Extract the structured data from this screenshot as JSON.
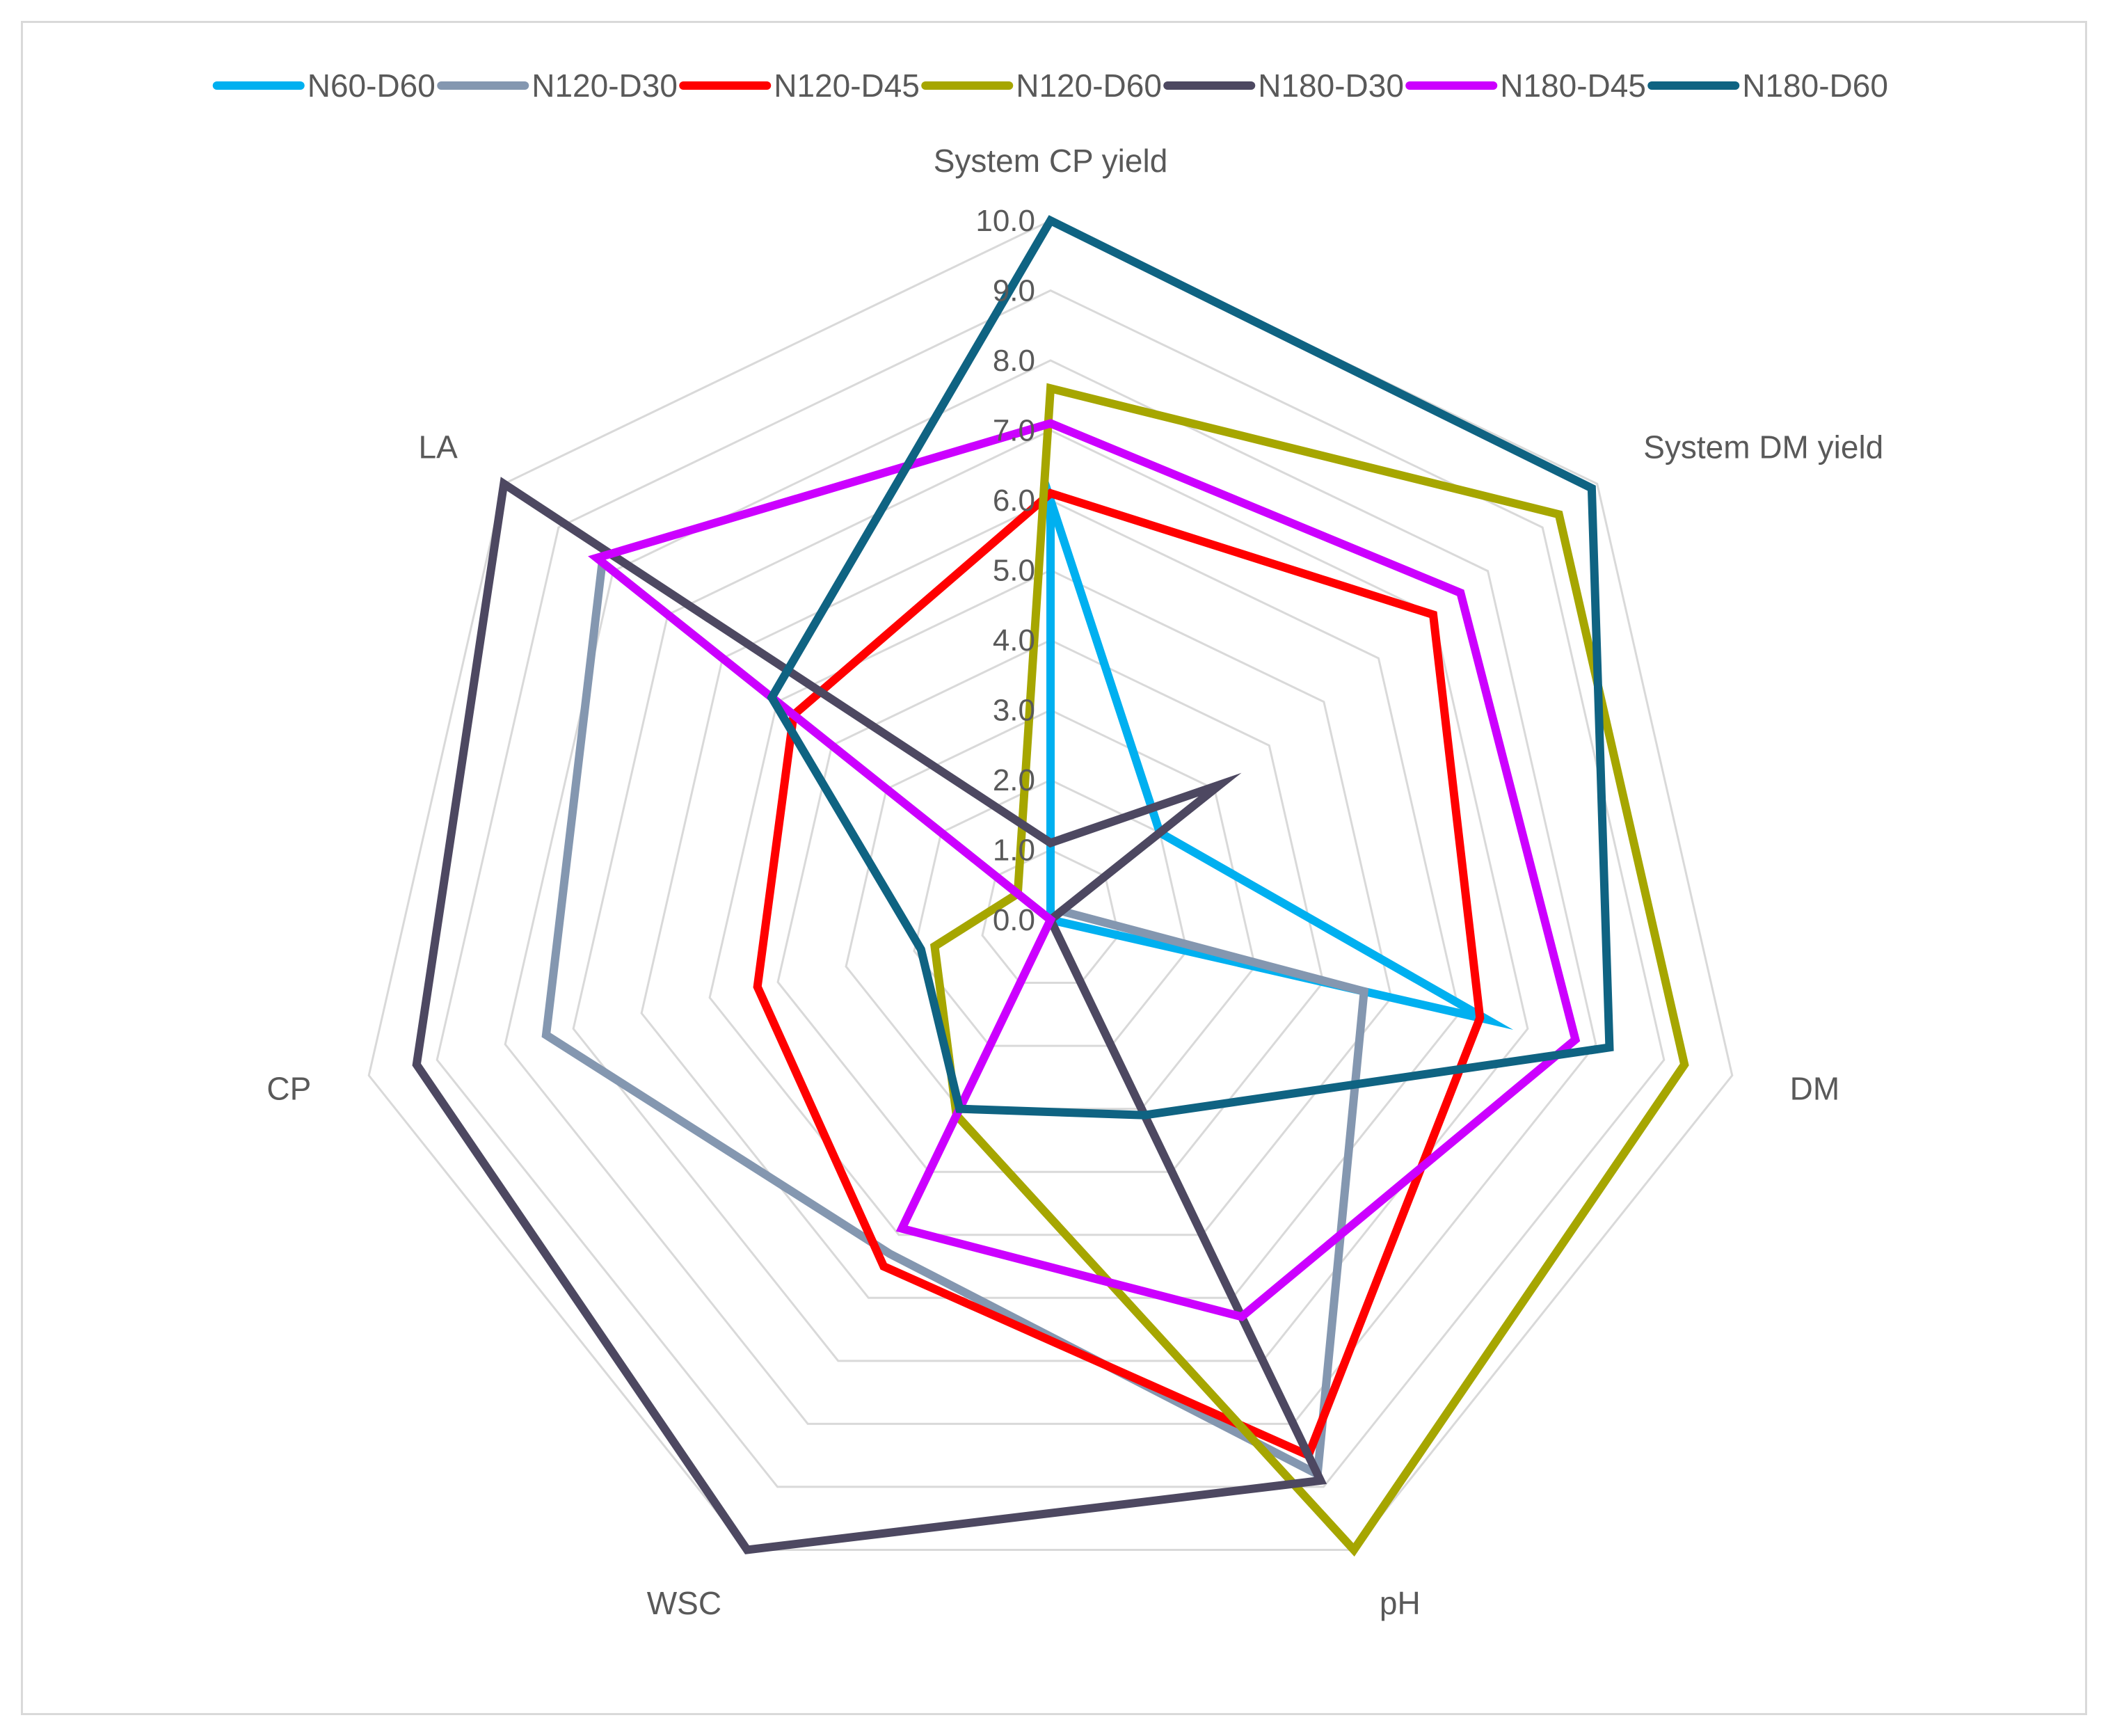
{
  "chart_data": {
    "type": "radar",
    "axes": [
      "System CP yield",
      "System DM yield",
      "DM",
      "pH",
      "WSC",
      "CP",
      "LA"
    ],
    "rlim": [
      0,
      10
    ],
    "ticks": [
      "0.0",
      "1.0",
      "2.0",
      "3.0",
      "4.0",
      "5.0",
      "6.0",
      "7.0",
      "8.0",
      "9.0",
      "10.0"
    ],
    "grid": true,
    "legend_position": "top",
    "series": [
      {
        "name": "N60-D60",
        "color": "#00b0f0",
        "values": [
          6.0,
          2.0,
          6.4,
          0.0,
          0.0,
          0.0,
          0.0
        ]
      },
      {
        "name": "N120-D30",
        "color": "#8497b0",
        "values": [
          0.0,
          0.2,
          4.6,
          8.8,
          5.3,
          7.4,
          8.2
        ]
      },
      {
        "name": "N120-D45",
        "color": "#ff0000",
        "values": [
          6.1,
          7.0,
          6.3,
          8.5,
          5.5,
          4.3,
          4.7
        ]
      },
      {
        "name": "N120-D60",
        "color": "#a6a600",
        "values": [
          7.6,
          9.3,
          9.3,
          10.0,
          3.1,
          1.7,
          0.6
        ]
      },
      {
        "name": "N180-D30",
        "color": "#4d4861",
        "values": [
          1.1,
          3.1,
          0.0,
          8.9,
          10.0,
          9.3,
          10.0
        ]
      },
      {
        "name": "N180-D45",
        "color": "#cc00ff",
        "values": [
          7.1,
          7.5,
          7.7,
          6.3,
          4.9,
          0.0,
          8.3
        ]
      },
      {
        "name": "N180-D60",
        "color": "#0f6382",
        "values": [
          10.0,
          9.9,
          8.2,
          3.1,
          3.0,
          1.9,
          5.1
        ]
      }
    ]
  }
}
